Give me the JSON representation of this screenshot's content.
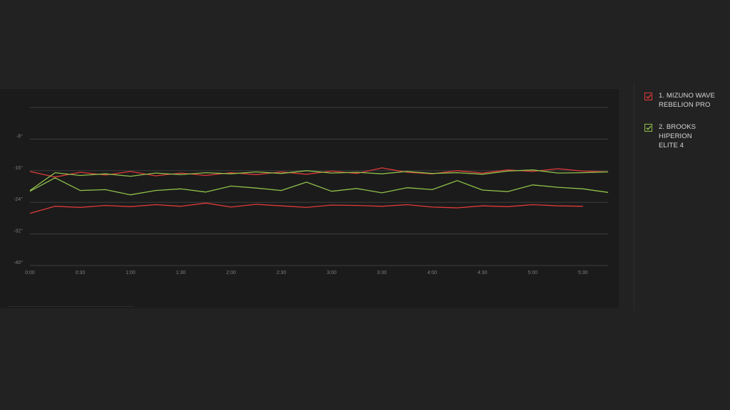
{
  "legend": {
    "items": [
      {
        "label": "1. MIZUNO WAVE\nREBELION PRO",
        "color": "#e03a3a",
        "checked": true
      },
      {
        "label": "2. BROOKS HIPERION\nELITE 4",
        "color": "#8fc04a",
        "checked": true
      }
    ]
  },
  "chart_data": {
    "type": "line",
    "title": "",
    "xlabel": "",
    "ylabel": "",
    "x_tick_labels": [
      "0:00",
      "0:30",
      "1:00",
      "1:30",
      "2:00",
      "2:30",
      "3:00",
      "3:30",
      "4:00",
      "4:30",
      "5:00",
      "5:30"
    ],
    "y_tick_labels": [
      "-8°",
      "-16°",
      "-24°",
      "-32°",
      "-40°"
    ],
    "y_ticks": [
      -8,
      -16,
      -24,
      -32,
      -40
    ],
    "xlim": [
      0,
      345
    ],
    "ylim": [
      -40,
      0
    ],
    "grid": true,
    "series": [
      {
        "name": "1. MIZUNO WAVE REBELION PRO",
        "color": "#e03a3a",
        "line": 0,
        "x": [
          0,
          15,
          30,
          45,
          60,
          75,
          90,
          105,
          120,
          135,
          150,
          165,
          180,
          195,
          210,
          225,
          240,
          255,
          270,
          285,
          300,
          315,
          330,
          345
        ],
        "y": [
          -16.2,
          -17.6,
          -16.4,
          -17.1,
          -16.2,
          -17.3,
          -16.6,
          -17.2,
          -16.5,
          -17.0,
          -16.3,
          -16.9,
          -16.1,
          -16.7,
          -15.3,
          -16.4,
          -16.8,
          -16.0,
          -16.6,
          -15.8,
          -16.2,
          -15.5,
          -16.1,
          -16.3
        ]
      },
      {
        "name": "1. MIZUNO WAVE REBELION PRO",
        "color": "#e03a3a",
        "line": 1,
        "x": [
          0,
          15,
          30,
          45,
          60,
          75,
          90,
          105,
          120,
          135,
          150,
          165,
          180,
          195,
          210,
          225,
          240,
          255,
          270,
          285,
          300,
          315,
          330
        ],
        "y": [
          -26.8,
          -25.0,
          -25.3,
          -24.8,
          -25.1,
          -24.6,
          -25.0,
          -24.2,
          -25.2,
          -24.5,
          -24.9,
          -25.3,
          -24.7,
          -24.8,
          -25.0,
          -24.6,
          -25.2,
          -25.4,
          -24.9,
          -25.1,
          -24.6,
          -24.9,
          -25.0
        ]
      },
      {
        "name": "2. BROOKS HIPERION ELITE 4",
        "color": "#8fc04a",
        "line": 0,
        "x": [
          0,
          15,
          30,
          45,
          60,
          75,
          90,
          105,
          120,
          135,
          150,
          165,
          180,
          195,
          210,
          225,
          240,
          255,
          270,
          285,
          300,
          315,
          330,
          345
        ],
        "y": [
          -21.2,
          -17.8,
          -21.0,
          -20.8,
          -22.1,
          -21.0,
          -20.6,
          -21.4,
          -19.9,
          -20.4,
          -21.0,
          -18.9,
          -21.2,
          -20.5,
          -21.6,
          -20.3,
          -20.8,
          -18.5,
          -20.9,
          -21.3,
          -19.6,
          -20.2,
          -20.6,
          -21.5
        ]
      },
      {
        "name": "2. BROOKS HIPERION ELITE 4",
        "color": "#8fc04a",
        "line": 1,
        "x": [
          0,
          15,
          30,
          45,
          60,
          75,
          90,
          105,
          120,
          135,
          150,
          165,
          180,
          195,
          210,
          225,
          240,
          255,
          270,
          285,
          300,
          315,
          330,
          345
        ],
        "y": [
          -21.0,
          -16.5,
          -17.2,
          -16.8,
          -17.4,
          -16.6,
          -17.0,
          -16.5,
          -16.8,
          -16.3,
          -16.7,
          -16.0,
          -16.6,
          -16.4,
          -16.8,
          -16.2,
          -16.7,
          -16.5,
          -16.9,
          -16.1,
          -15.8,
          -16.6,
          -16.5,
          -16.3
        ]
      }
    ]
  }
}
